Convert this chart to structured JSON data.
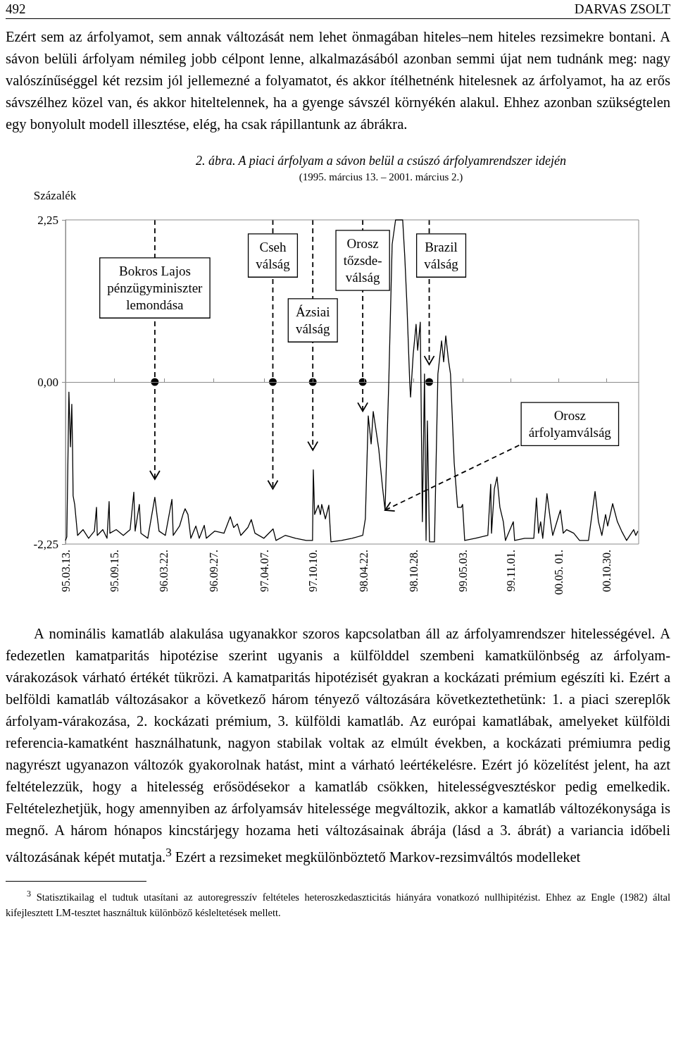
{
  "chart_data": {
    "type": "line",
    "title": "2. ábra. A piaci árfolyam a sávon belül a csúszó árfolyamrendszer idején",
    "subtitle": "(1995. március 13. – 2001. március 2.)",
    "ylabel": "Százalék",
    "x": [
      "1995-03-13",
      "1995-03-18",
      "1995-03-26",
      "1995-04-01",
      "1995-04-06",
      "1995-04-09",
      "1995-04-11",
      "1995-04-17",
      "1995-04-28",
      "1995-05-19",
      "1995-06-09",
      "1995-07-01",
      "1995-07-09",
      "1995-07-12",
      "1995-08-02",
      "1995-08-18",
      "1995-08-26",
      "1995-08-29",
      "1995-09-22",
      "1995-10-19",
      "1995-11-14",
      "1995-11-28",
      "1995-12-03",
      "1995-12-19",
      "1995-12-25",
      "1996-01-20",
      "1996-02-16",
      "1996-02-24",
      "1996-03-03",
      "1996-03-27",
      "1996-04-21",
      "1996-04-26",
      "1996-05-20",
      "1996-06-02",
      "1996-06-10",
      "1996-06-21",
      "1996-07-02",
      "1996-07-21",
      "1996-08-03",
      "1996-08-22",
      "1996-08-30",
      "1996-10-01",
      "1996-11-05",
      "1996-11-29",
      "1996-12-12",
      "1996-12-26",
      "1997-01-08",
      "1997-02-04",
      "1997-02-17",
      "1997-03-03",
      "1997-04-06",
      "1997-05-11",
      "1997-05-22",
      "1997-06-26",
      "1997-08-05",
      "1997-09-14",
      "1997-10-08",
      "1997-10-11",
      "1997-10-16",
      "1997-10-30",
      "1997-11-07",
      "1997-11-12",
      "1997-11-26",
      "1997-12-09",
      "1997-12-17",
      "1998-01-26",
      "1998-03-07",
      "1998-04-17",
      "1998-04-27",
      "1998-05-08",
      "1998-05-19",
      "1998-05-27",
      "1998-06-09",
      "1998-06-17",
      "1998-07-01",
      "1998-07-11",
      "1998-07-25",
      "1998-08-07",
      "1998-08-20",
      "1998-09-16",
      "1998-09-24",
      "1998-10-02",
      "1998-10-13",
      "1998-10-16",
      "1998-10-26",
      "1998-11-06",
      "1998-11-12",
      "1998-11-22",
      "1998-11-30",
      "1998-12-08",
      "1998-12-14",
      "1998-12-19",
      "1998-12-27",
      "1999-01-15",
      "1999-01-28",
      "1999-02-11",
      "1999-02-19",
      "1999-02-27",
      "1999-03-09",
      "1999-03-17",
      "1999-03-31",
      "1999-04-13",
      "1999-04-27",
      "1999-05-02",
      "1999-05-10",
      "1999-06-19",
      "1999-08-06",
      "1999-08-17",
      "1999-08-20",
      "1999-08-31",
      "1999-09-10",
      "1999-09-21",
      "1999-10-04",
      "1999-10-12",
      "1999-11-11",
      "1999-11-16",
      "1999-12-24",
      "2000-01-28",
      "2000-02-07",
      "2000-02-15",
      "2000-02-23",
      "2000-03-02",
      "2000-03-18",
      "2000-04-01",
      "2000-04-09",
      "2000-05-08",
      "2000-05-19",
      "2000-06-01",
      "2000-06-28",
      "2000-07-20",
      "2000-08-23",
      "2000-09-17",
      "2000-09-30",
      "2000-10-13",
      "2000-10-27",
      "2000-11-04",
      "2000-11-23",
      "2000-12-11",
      "2000-12-27",
      "2001-01-15",
      "2001-02-11",
      "2001-02-19",
      "2001-02-27"
    ],
    "series": [
      {
        "color": "#000000",
        "values": [
          -2.2,
          -2.15,
          -0.14,
          -0.9,
          -0.31,
          -0.93,
          -1.58,
          -1.7,
          -2.13,
          -2.05,
          -2.17,
          -2.07,
          -1.74,
          -2.13,
          -2.05,
          -2.17,
          -1.66,
          -2.1,
          -2.05,
          -2.13,
          -2.05,
          -1.53,
          -2.07,
          -1.7,
          -2.1,
          -2.17,
          -1.6,
          -1.84,
          -2.07,
          -2.13,
          -1.63,
          -2.13,
          -2.0,
          -1.84,
          -1.76,
          -1.84,
          -2.17,
          -2.0,
          -2.17,
          -1.99,
          -2.17,
          -2.07,
          -2.1,
          -1.87,
          -2.02,
          -1.97,
          -2.13,
          -2.02,
          -1.91,
          -2.1,
          -2.17,
          -2.04,
          -2.2,
          -2.13,
          -2.17,
          -2.2,
          -2.2,
          -1.22,
          -1.84,
          -1.71,
          -1.84,
          -1.7,
          -1.9,
          -1.71,
          -2.22,
          -2.2,
          -2.17,
          -2.13,
          -1.9,
          -0.47,
          -0.86,
          -0.41,
          -0.73,
          -0.93,
          -1.45,
          -1.78,
          -0.02,
          1.91,
          2.25,
          2.25,
          1.74,
          1.09,
          -0.02,
          -0.21,
          0.38,
          0.8,
          0.44,
          0.83,
          -1.94,
          0.11,
          -2.2,
          -0.54,
          -2.22,
          -2.22,
          0.11,
          0.57,
          0.28,
          0.64,
          0.31,
          0.11,
          -1.12,
          -1.74,
          -1.74,
          -1.7,
          -2.2,
          -2.17,
          -2.13,
          -1.42,
          -2.1,
          -1.48,
          -1.32,
          -1.74,
          -1.94,
          -2.2,
          -1.94,
          -2.2,
          -2.17,
          -2.17,
          -1.61,
          -2.1,
          -1.94,
          -2.17,
          -1.55,
          -1.94,
          -2.13,
          -1.78,
          -2.1,
          -2.05,
          -2.1,
          -2.2,
          -2.2,
          -1.52,
          -1.94,
          -2.13,
          -1.84,
          -2.0,
          -1.69,
          -1.94,
          -2.07,
          -2.2,
          -2.05,
          -2.13,
          -2.07
        ]
      }
    ],
    "xlim": [
      "1995-03-13",
      "2001-03-02"
    ],
    "xticks": [
      {
        "value": "1995-03-13",
        "label": "95.03.13."
      },
      {
        "value": "1995-09-15",
        "label": "95.09.15."
      },
      {
        "value": "1996-03-22",
        "label": "96.03.22."
      },
      {
        "value": "1996-09-27",
        "label": "96.09.27."
      },
      {
        "value": "1997-04-07",
        "label": "97.04.07."
      },
      {
        "value": "1997-10-10",
        "label": "97.10.10."
      },
      {
        "value": "1998-04-22",
        "label": "98.04.22."
      },
      {
        "value": "1998-10-28",
        "label": "98.10.28."
      },
      {
        "value": "1999-05-03",
        "label": "99.05.03."
      },
      {
        "value": "1999-11-01",
        "label": "99.11.01."
      },
      {
        "value": "2000-05-01",
        "label": "00.05. 01."
      },
      {
        "value": "2000-10-30",
        "label": "00.10.30."
      }
    ],
    "ylim": [
      -2.25,
      2.25
    ],
    "yticks": [
      {
        "value": 2.25,
        "label": "2,25"
      },
      {
        "value": 0,
        "label": "0,00"
      },
      {
        "value": -2.25,
        "label": "-2,25"
      }
    ],
    "grid": false,
    "annotations": [
      "492",
      "DARVAS ZSOLT",
      "Ezért sem az árfolyamot, sem annak változását nem lehet önmagában hiteles–nem hiteles rezsimekre bontani. A sávon belüli árfolyam némileg jobb célpont lenne, alkalmazásából azonban semmi újat nem tudnánk meg: nagy valószínűséggel két rezsim jól jellemezné a folyamatot, és akkor ítélhetnénk hitelesnek az árfolyamot, ha az erős sávszélhez közel van, és akkor hiteltelennek, ha a gyenge sávszél környékén alakul. Ehhez azonban szükségtelen egy bonyolult modell illesztése, elég, ha csak rápillantunk az ábrákra.",
      "A nominális kamatláb alakulása ugyanakkor szoros kapcsolatban áll az árfolyamrendszer hitelességével. A fedezetlen kamatparitás hipotézise szerint ugyanis a külfölddel szembeni kamatkülönbség az árfolyam-várakozások várható értékét tükrözi. A kamatparitás hipotézisét gyakran a kockázati prémium egészíti ki. Ezért a belföldi kamatláb változásakor a következő három tényező változására következtethetünk: 1. a piaci szereplők árfolyam-várakozása, 2. kockázati prémium, 3. külföldi kamatláb. Az európai kamatlábak, amelyeket külföldi referencia-kamatként használhatunk, nagyon stabilak voltak az elmúlt években, a kockázati prémiumra pedig nagyrészt ugyanazon változók gyakorolnak hatást, mint a várható leértékelésre. Ezért jó közelítést jelent, ha azt feltételezzük, hogy a hitelesség erősödésekor a kamatláb csökken, hitelességvesztéskor pedig emelkedik. Feltételezhetjük, hogy amennyiben az árfolyamsáv hitelessége megváltozik, akkor a kamatláb változékonysága is megnő. A három hónapos kincstárjegy hozama heti változásainak ábrája (lásd a 3. ábrát) a variancia időbeli változásának képét mutatja.$^{3}$ Ezért a rezsimeket megkülönböztető Markov-rezsimváltós modelleket",
      "$^{3}$ Statisztikailag el tudtuk utasítani az autoregresszív feltételes heteroszkedaszticitás hiányára vonatkozó nullhipitézist. Ehhez az Engle (1982) által kifejlesztett LM-tesztet használtuk különböző késleltetések mellett.",
      {
        "text": "Orosz\nárfolyamválság",
        "x": "1998-07-11",
        "y": -1.78
      }
    ],
    "ref_lines": [
      {
        "axis": "x",
        "value": "1996-02-16",
        "label": "Bokros Lajos\npénzügyminiszter\nlemondása",
        "line_style": "dashed"
      },
      {
        "axis": "x",
        "value": "1997-05-10",
        "label": "Cseh\nválság",
        "line_style": "dashed"
      },
      {
        "axis": "x",
        "value": "1997-10-09",
        "label": "Ázsiai\nválság",
        "line_style": "dashed"
      },
      {
        "axis": "x",
        "value": "1998-04-17",
        "label": "Orosz\ntőzsde-\nválság",
        "line_style": "dashed"
      },
      {
        "axis": "x",
        "value": "1998-12-26",
        "label": "Brazil\nválság",
        "line_style": "dashed"
      }
    ]
  }
}
